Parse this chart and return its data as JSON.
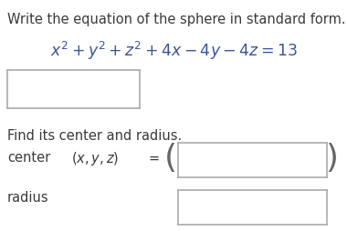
{
  "title_text": "Write the equation of the sphere in standard form.",
  "title_color": "#3a3a3a",
  "equation_text": "$x^2 + y^2 + z^2 + 4x - 4y - 4z = 13$",
  "equation_color": "#3a55a0",
  "find_text": "Find its center and radius.",
  "center_label": "center",
  "center_var": "$(x, y, z)$",
  "radius_label": "radius",
  "text_color": "#3a3a3a",
  "box_edge_color": "#aaaaaa",
  "bg_color": "#ffffff",
  "font_size_title": 10.5,
  "font_size_eq": 12.5,
  "font_size_body": 10.5,
  "font_size_paren": 26,
  "fig_width": 3.8,
  "fig_height": 2.55,
  "dpi": 100
}
